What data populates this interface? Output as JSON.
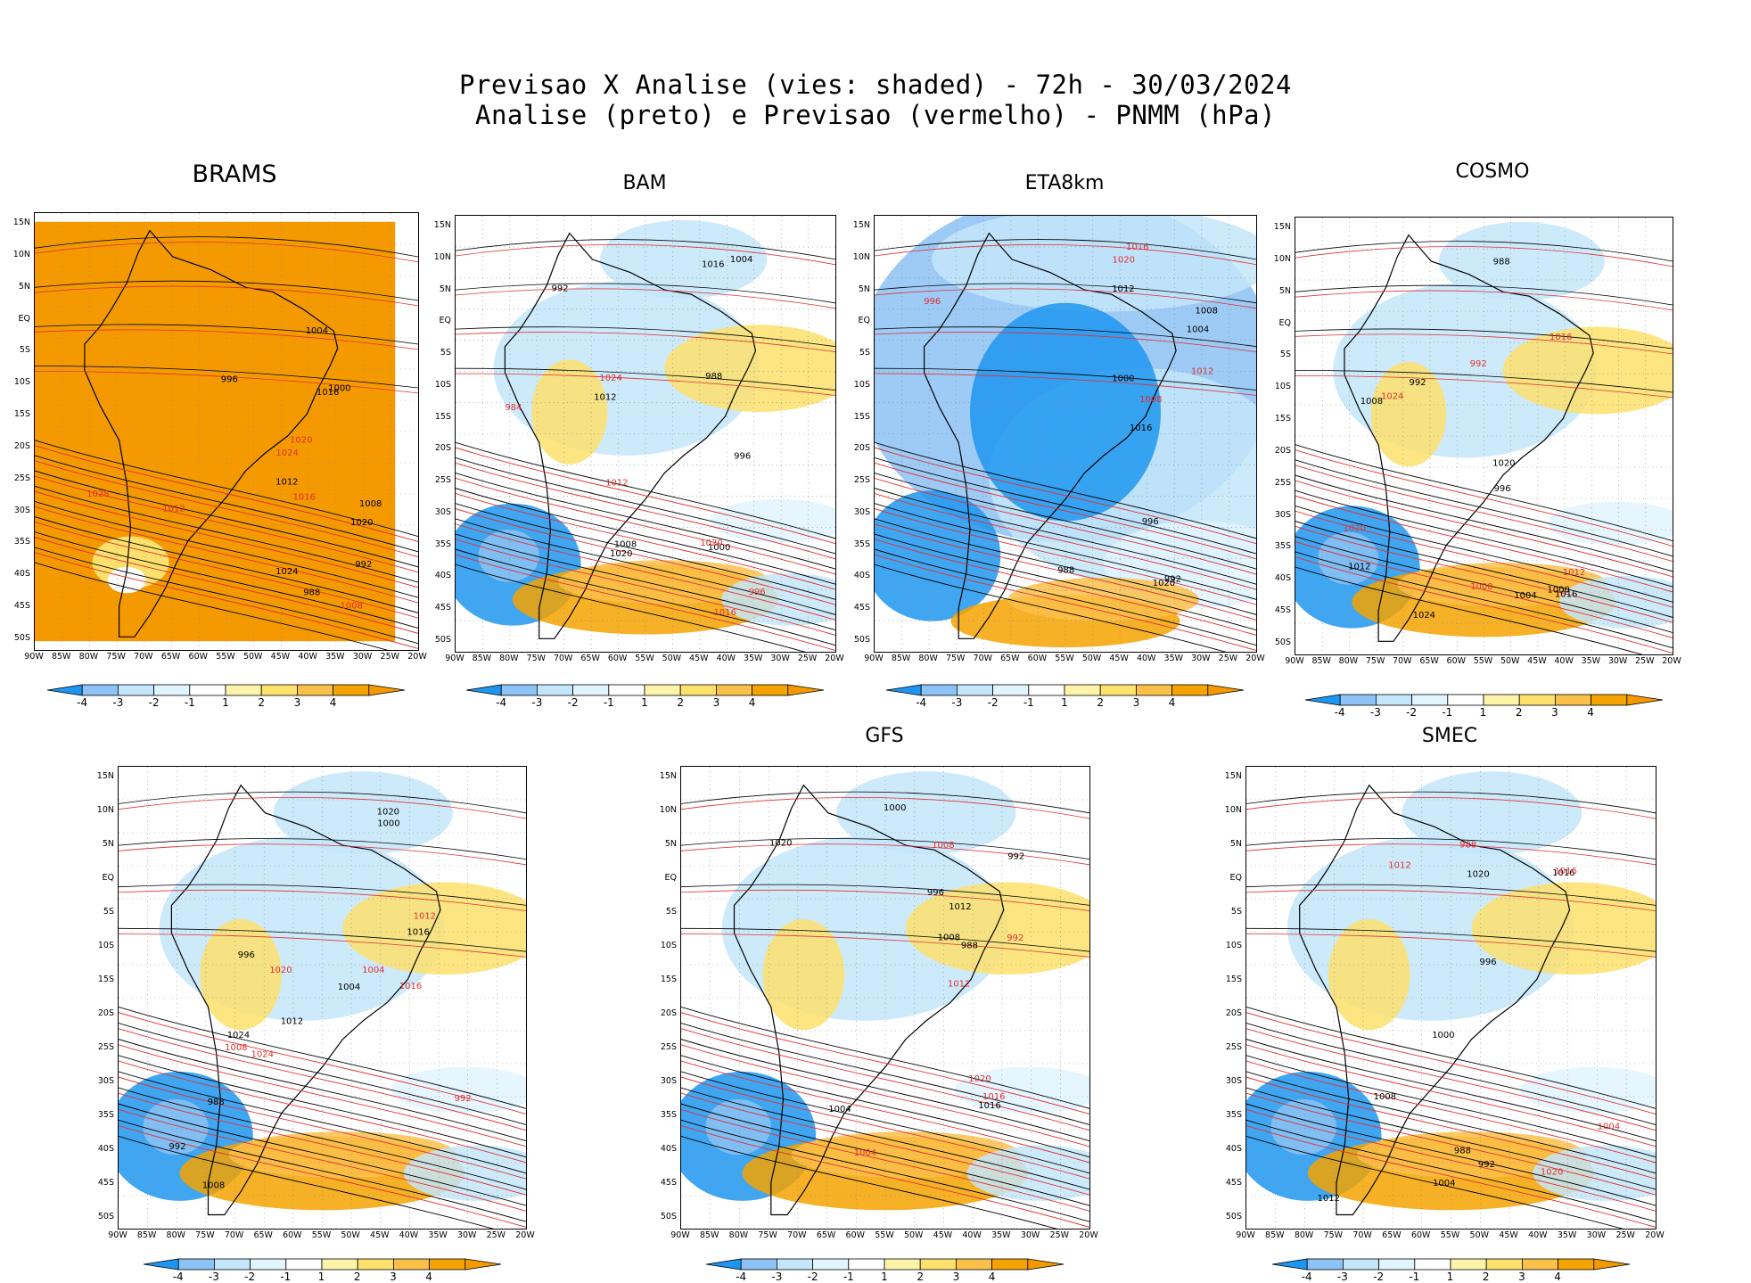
{
  "title_line1": "Previsao X Analise (vies: shaded) - 72h - 30/03/2024",
  "title_line2": "Analise (preto) e Previsao (vermelho) - PNMM (hPa)",
  "lat_labels": [
    "15N",
    "10N",
    "5N",
    "EQ",
    "5S",
    "10S",
    "15S",
    "20S",
    "25S",
    "30S",
    "35S",
    "40S",
    "45S",
    "50S"
  ],
  "lon_labels": [
    "90W",
    "85W",
    "80W",
    "75W",
    "70W",
    "65W",
    "60W",
    "55W",
    "50W",
    "45W",
    "40W",
    "35W",
    "30W",
    "25W",
    "20W"
  ],
  "colorbar": {
    "labels": [
      "-4",
      "-3",
      "-2",
      "-1",
      "1",
      "2",
      "3",
      "4"
    ],
    "colors": [
      "#1e96f0",
      "#8cc2f5",
      "#c4e6fa",
      "#e1f5ff",
      "#ffffff",
      "#fdf4a9",
      "#fde16c",
      "#fbc04a",
      "#f5a300",
      "#f49a00"
    ]
  },
  "panels": [
    {
      "name": "BRAMS",
      "title": "BRAMS",
      "bias": "warm-all",
      "analysis_labels": [
        "1012",
        "1008",
        "1016",
        "1020",
        "1024",
        "1004",
        "1000",
        "996",
        "992",
        "988"
      ],
      "forecast_labels": [
        "1020",
        "1024",
        "1028",
        "1016",
        "1012",
        "1008"
      ]
    },
    {
      "name": "BAM",
      "title": "BAM",
      "bias": "mixed",
      "analysis_labels": [
        "1016",
        "1012",
        "1008",
        "1020",
        "1004",
        "1000",
        "996",
        "992",
        "988"
      ],
      "forecast_labels": [
        "1012",
        "1016",
        "1020",
        "1024",
        "996",
        "984"
      ]
    },
    {
      "name": "ETA8km",
      "title": "ETA8km",
      "bias": "cold",
      "analysis_labels": [
        "1016",
        "1012",
        "1008",
        "1020",
        "1004",
        "1000",
        "996",
        "992",
        "988"
      ],
      "forecast_labels": [
        "1012",
        "1008",
        "1016",
        "1020",
        "996"
      ]
    },
    {
      "name": "COSMO",
      "title": "COSMO",
      "bias": "mixed",
      "analysis_labels": [
        "1016",
        "1012",
        "1020",
        "1024",
        "1008",
        "1004",
        "1000",
        "996",
        "992",
        "988"
      ],
      "forecast_labels": [
        "1012",
        "1016",
        "1020",
        "1024",
        "1000",
        "992"
      ]
    },
    {
      "name": "unnamed",
      "title": "",
      "bias": "mixed",
      "analysis_labels": [
        "1016",
        "1012",
        "1008",
        "1020",
        "1024",
        "1004",
        "1000",
        "996",
        "992",
        "988"
      ],
      "forecast_labels": [
        "1012",
        "1016",
        "1020",
        "1024",
        "1008",
        "1004",
        "992"
      ]
    },
    {
      "name": "GFS",
      "title": "GFS",
      "bias": "mixed",
      "analysis_labels": [
        "1016",
        "1012",
        "1008",
        "1020",
        "1004",
        "1000",
        "996",
        "992",
        "988"
      ],
      "forecast_labels": [
        "1012",
        "1016",
        "1020",
        "1008",
        "1004",
        "992"
      ]
    },
    {
      "name": "SMEC",
      "title": "SMEC",
      "bias": "mixed",
      "analysis_labels": [
        "1016",
        "1012",
        "1008",
        "1020",
        "1004",
        "1000",
        "996",
        "992",
        "988"
      ],
      "forecast_labels": [
        "1012",
        "1016",
        "1020",
        "1004",
        "988"
      ]
    }
  ]
}
